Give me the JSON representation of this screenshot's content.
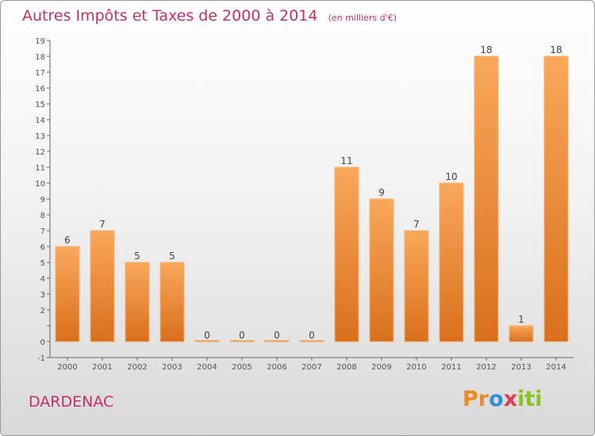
{
  "title": "Autres Impôts et Taxes de 2000 à 2014",
  "subtitle": "(en milliers d'€)",
  "town": "DARDENAC",
  "logo": {
    "letters": [
      "P",
      "r",
      "o",
      "x",
      "i",
      "t",
      "i"
    ],
    "colors": [
      "#f08a1c",
      "#f08a1c",
      "#2f8fd8",
      "#e23b4d",
      "#8cbf26",
      "#8cbf26",
      "#8cbf26"
    ]
  },
  "colors": {
    "bar": "#ef8a30",
    "bar_light": "#f9a85a",
    "bar_dark": "#d96f1c",
    "accent": "#c0306a"
  },
  "chart_data": {
    "type": "bar",
    "title": "Autres Impôts et Taxes de 2000 à 2014",
    "ylabel": "(en milliers d'€)",
    "xlabel": "",
    "categories": [
      "2000",
      "2001",
      "2002",
      "2003",
      "2004",
      "2005",
      "2006",
      "2007",
      "2008",
      "2009",
      "2010",
      "2011",
      "2012",
      "2013",
      "2014"
    ],
    "values": [
      6,
      7,
      5,
      5,
      0,
      0,
      0,
      0,
      11,
      9,
      7,
      10,
      18,
      1,
      18
    ],
    "value_labels": [
      "6",
      "7",
      "5",
      "5",
      "0",
      "0",
      "0",
      "0",
      "11",
      "9",
      "7",
      "10",
      "18",
      "1",
      "18"
    ],
    "ylim": [
      -1,
      19
    ],
    "yticks": [
      -1,
      0,
      1,
      2,
      3,
      4,
      5,
      6,
      7,
      8,
      9,
      10,
      11,
      12,
      13,
      14,
      15,
      16,
      17,
      18,
      19
    ],
    "ytick_labels": [
      "-1",
      "0",
      "",
      "2",
      "3",
      "4",
      "5",
      "6",
      "7",
      "8",
      "9",
      "10",
      "11",
      "12",
      "13",
      "14",
      "15",
      "16",
      "17",
      "18",
      "19"
    ],
    "grid": false
  }
}
